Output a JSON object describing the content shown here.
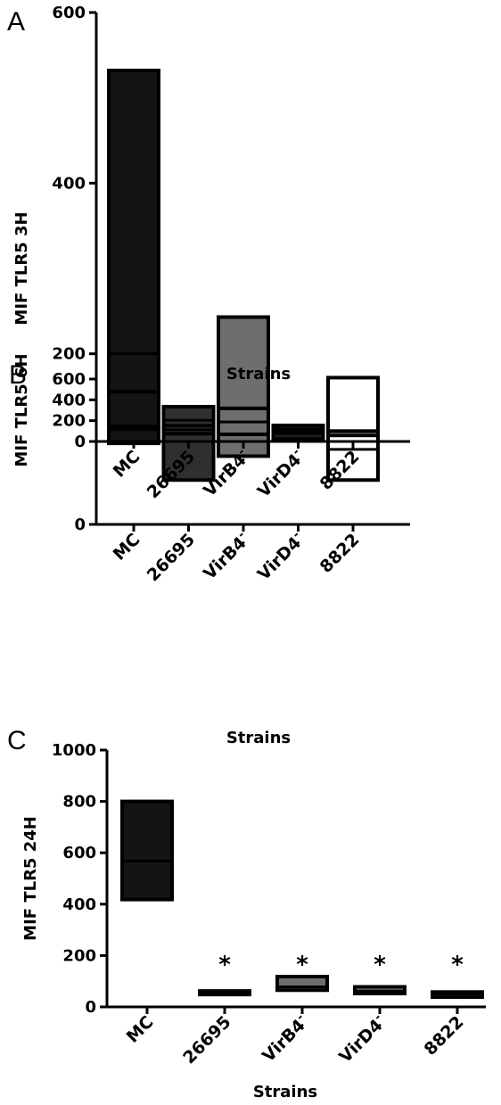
{
  "chart_data": [
    {
      "type": "floating-bar",
      "panel": "A",
      "categories": [
        "MC",
        "26695",
        "VirB4",
        "VirD4",
        "8822"
      ],
      "superscripts": [
        "",
        "",
        "-",
        "-",
        ""
      ],
      "ylabel": "MIF TLR5  3H",
      "xlabel": "Strains",
      "ylim": [
        0,
        600
      ],
      "yticks": [
        0,
        200,
        400,
        600
      ],
      "bars": [
        {
          "category": "MC",
          "min": 95,
          "max": 532,
          "mid": 200,
          "fill": "#141414"
        },
        {
          "category": "26695",
          "min": 52,
          "max": 138,
          "mid": 122,
          "fill": "#2f2f2f"
        },
        {
          "category": "VirB4",
          "min": 80,
          "max": 243,
          "mid": 112,
          "fill": "#6e6e6e"
        },
        {
          "category": "VirD4",
          "min": 100,
          "max": 116,
          "mid": 108,
          "fill": "#1e1e1e"
        },
        {
          "category": "8822",
          "min": 52,
          "max": 172,
          "mid": 88,
          "fill": "#ffffff"
        }
      ],
      "significance": [
        "",
        "",
        "",
        "",
        ""
      ]
    },
    {
      "type": "floating-bar",
      "panel": "B",
      "categories": [
        "MC",
        "26695",
        "VirB4",
        "VirD4",
        "8822"
      ],
      "superscripts": [
        "",
        "",
        "-",
        "-",
        ""
      ],
      "ylabel": "MIF TLR5  6H",
      "xlabel": "Strains",
      "ylim": [
        0,
        600
      ],
      "yticks": [
        0,
        200,
        400,
        600
      ],
      "bars": [
        {
          "category": "MC",
          "min": 118,
          "max": 478,
          "mid": 148,
          "fill": "#141414"
        },
        {
          "category": "26695",
          "min": 75,
          "max": 152,
          "mid": 112,
          "fill": "#2f2f2f"
        },
        {
          "category": "VirB4",
          "min": 68,
          "max": 318,
          "mid": 188,
          "fill": "#6e6e6e"
        },
        {
          "category": "VirD4",
          "min": 82,
          "max": 116,
          "mid": 88,
          "fill": "#b4b4b4"
        },
        {
          "category": "8822",
          "min": 58,
          "max": 100,
          "mid": 92,
          "fill": "#ffffff"
        }
      ],
      "significance": [
        "",
        "",
        "",
        "",
        ""
      ]
    },
    {
      "type": "floating-bar",
      "panel": "C",
      "categories": [
        "MC",
        "26695",
        "VirB4",
        "VirD4",
        "8822"
      ],
      "superscripts": [
        "",
        "",
        "-",
        "-",
        ""
      ],
      "ylabel": "MIF TLR5  24H",
      "xlabel": "Strains",
      "ylim": [
        0,
        1000
      ],
      "yticks": [
        0,
        200,
        400,
        600,
        800,
        1000
      ],
      "bars": [
        {
          "category": "MC",
          "min": 418,
          "max": 800,
          "mid": 568,
          "fill": "#141414"
        },
        {
          "category": "26695",
          "min": 50,
          "max": 62,
          "mid": 56,
          "fill": "#1e1e1e"
        },
        {
          "category": "VirB4",
          "min": 65,
          "max": 118,
          "mid": 78,
          "fill": "#6e6e6e"
        },
        {
          "category": "VirD4",
          "min": 52,
          "max": 78,
          "mid": 62,
          "fill": "#8c8c8c"
        },
        {
          "category": "8822",
          "min": 38,
          "max": 58,
          "mid": 50,
          "fill": "#ffffff"
        }
      ],
      "significance": [
        "",
        "*",
        "*",
        "*",
        "*"
      ]
    }
  ]
}
